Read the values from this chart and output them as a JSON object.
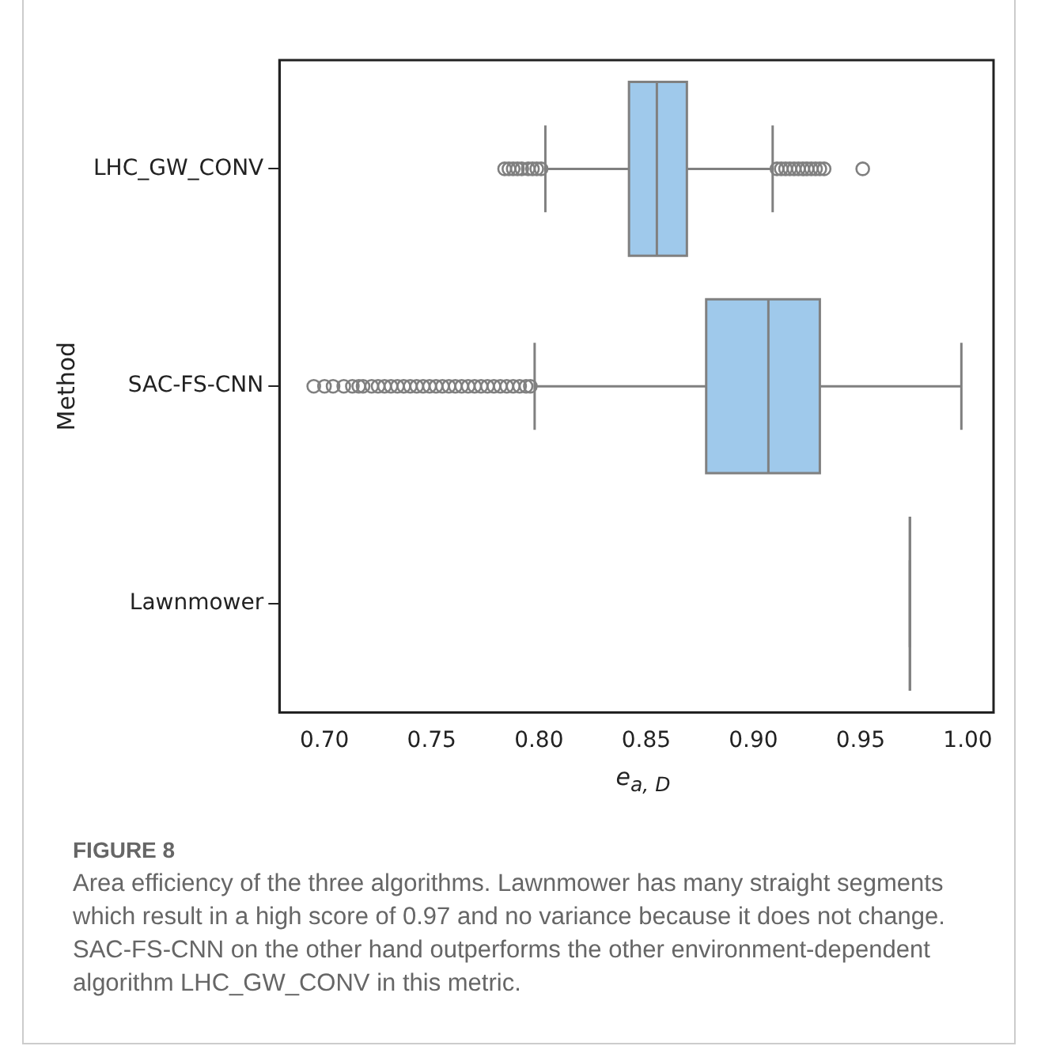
{
  "chart_data": {
    "type": "box",
    "orientation": "horizontal",
    "ylabel": "Method",
    "xlabel": "e$_{a, D}$",
    "categories": [
      "LHC_GW_CONV",
      "SAC-FS-CNN",
      "Lawnmower"
    ],
    "colors": [
      "#9fc9eb",
      "#9fc9eb",
      "#808080"
    ],
    "boxes": [
      {
        "low": 0.803,
        "q1": 0.842,
        "median": 0.855,
        "q3": 0.869,
        "high": 0.909,
        "outliers": [
          0.784,
          0.786,
          0.788,
          0.79,
          0.792,
          0.795,
          0.797,
          0.799,
          0.801,
          0.911,
          0.913,
          0.915,
          0.917,
          0.919,
          0.921,
          0.923,
          0.925,
          0.927,
          0.929,
          0.931,
          0.933,
          0.951
        ]
      },
      {
        "low": 0.798,
        "q1": 0.878,
        "median": 0.907,
        "q3": 0.931,
        "high": 0.997,
        "outliers": [
          0.695,
          0.7,
          0.704,
          0.709,
          0.713,
          0.716,
          0.718,
          0.722,
          0.725,
          0.728,
          0.731,
          0.734,
          0.737,
          0.74,
          0.743,
          0.746,
          0.749,
          0.752,
          0.755,
          0.758,
          0.761,
          0.764,
          0.767,
          0.77,
          0.773,
          0.776,
          0.779,
          0.782,
          0.785,
          0.788,
          0.791,
          0.794,
          0.796
        ]
      },
      {
        "low": 0.973,
        "q1": 0.973,
        "median": 0.973,
        "q3": 0.973,
        "high": 0.973
      }
    ],
    "xlim": [
      0.679,
      1.012
    ],
    "xticks": [
      {
        "value": 0.7,
        "label": "0.70"
      },
      {
        "value": 0.75,
        "label": "0.75"
      },
      {
        "value": 0.8,
        "label": "0.80"
      },
      {
        "value": 0.85,
        "label": "0.85"
      },
      {
        "value": 0.9,
        "label": "0.90"
      },
      {
        "value": 0.95,
        "label": "0.95"
      },
      {
        "value": 1,
        "label": "1.00"
      }
    ],
    "grid": false,
    "legend": false,
    "annotations": [
      "FIGURE 8",
      "Area efficiency of the three algorithms. Lawnmower has many straight segments which result in a high score of 0.97 and no variance because it does not change. SAC-FS-CNN on the other hand outperforms the other environment-dependent algorithm LHC_GW_CONV in this metric."
    ]
  }
}
